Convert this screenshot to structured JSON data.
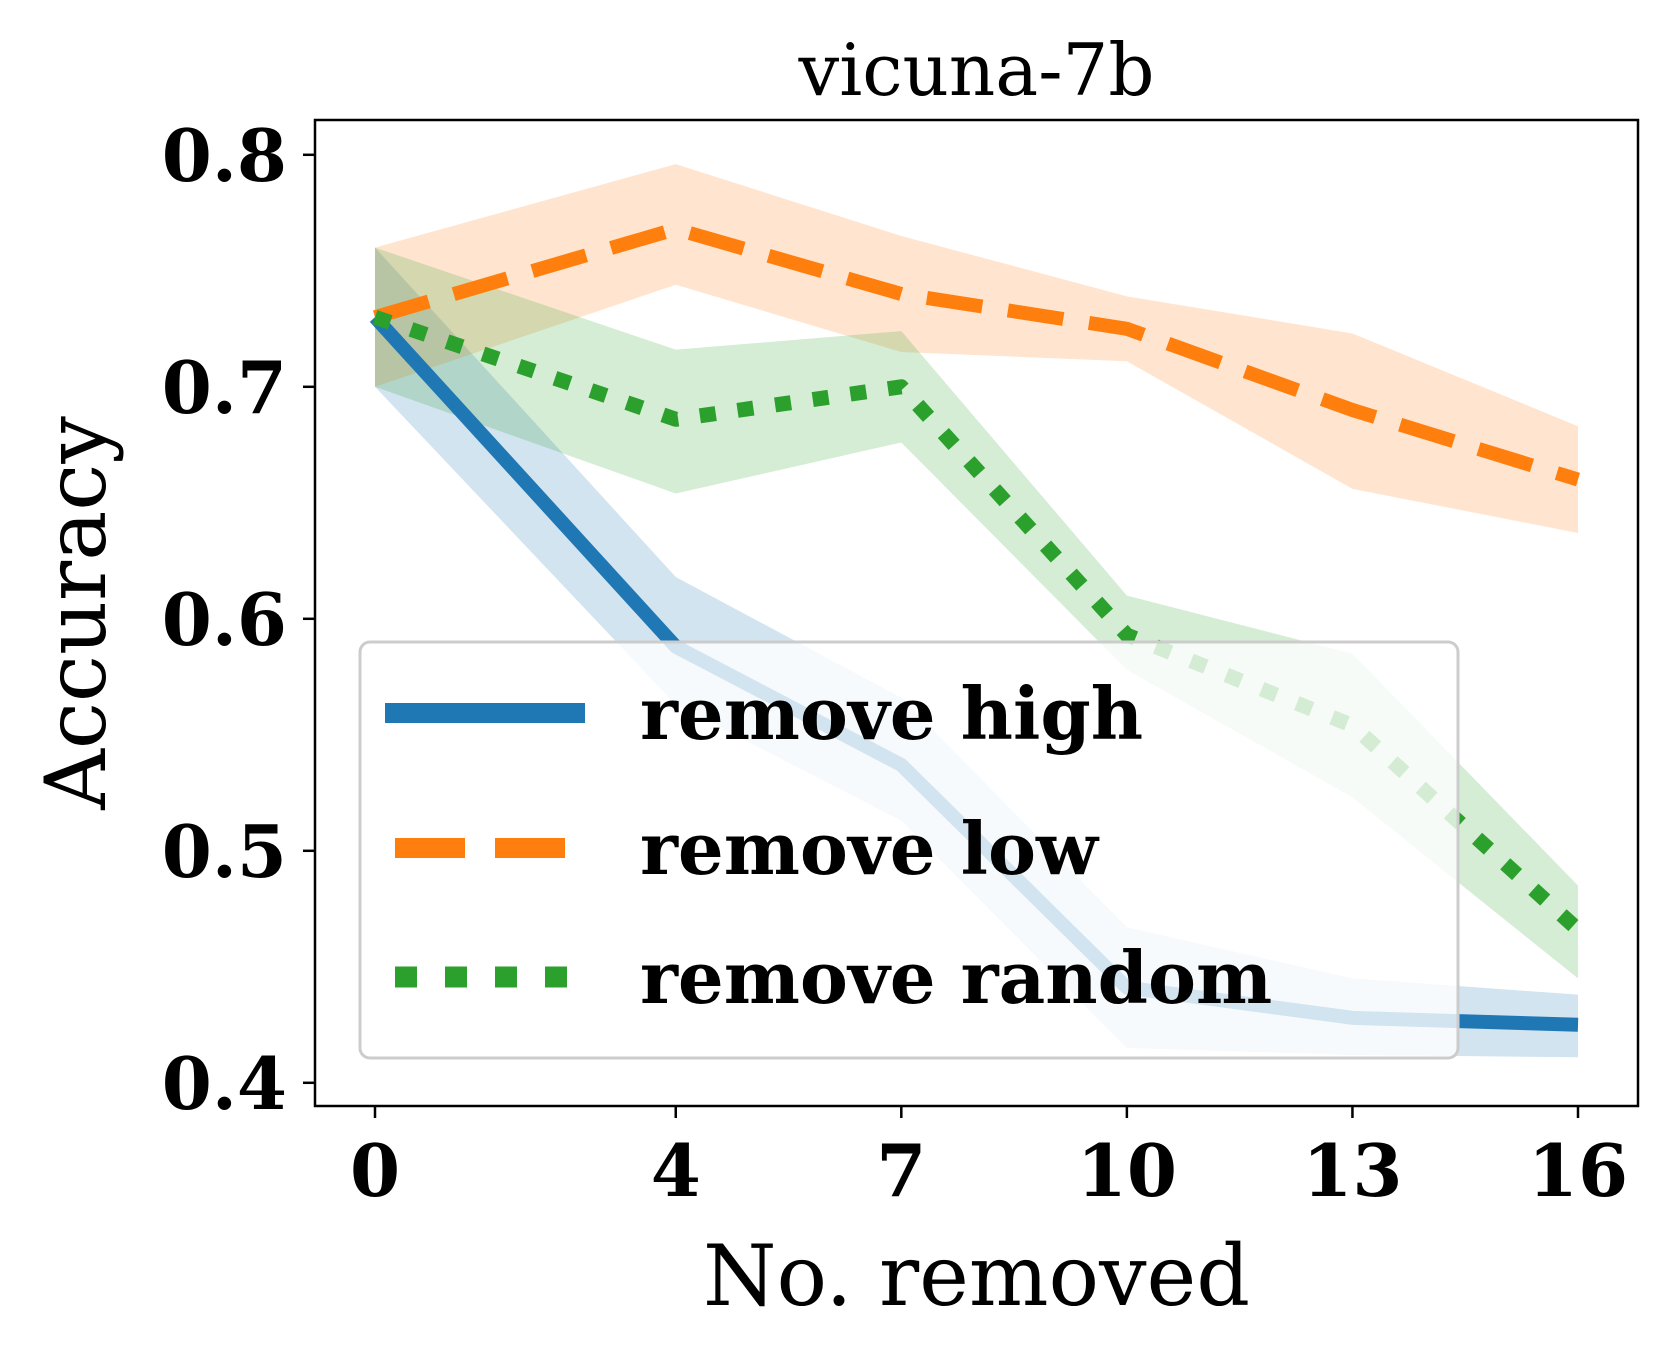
{
  "chart_data": {
    "type": "line",
    "title": "vicuna-7b",
    "xlabel": "No. removed",
    "ylabel": "Accuracy",
    "x": [
      0,
      4,
      7,
      10,
      13,
      16
    ],
    "x_ticks": [
      0,
      4,
      7,
      10,
      13,
      16
    ],
    "x_tick_labels": [
      "0",
      "4",
      "7",
      "10",
      "13",
      "16"
    ],
    "y_ticks": [
      0.4,
      0.5,
      0.6,
      0.7,
      0.8
    ],
    "y_tick_labels": [
      "0.4",
      "0.5",
      "0.6",
      "0.7",
      "0.8"
    ],
    "ylim": [
      0.39,
      0.815
    ],
    "grid": false,
    "legend_position": "lower-left",
    "series": [
      {
        "name": "remove high",
        "color": "#1f77b4",
        "style": "solid",
        "values": [
          0.73,
          0.588,
          0.537,
          0.441,
          0.428,
          0.425
        ],
        "lower": [
          0.7,
          0.563,
          0.513,
          0.415,
          0.412,
          0.411
        ],
        "upper": [
          0.76,
          0.618,
          0.566,
          0.467,
          0.445,
          0.438
        ]
      },
      {
        "name": "remove low",
        "color": "#ff7f0e",
        "style": "dashed",
        "values": [
          0.73,
          0.768,
          0.74,
          0.725,
          0.69,
          0.66
        ],
        "lower": [
          0.7,
          0.744,
          0.715,
          0.711,
          0.656,
          0.637
        ],
        "upper": [
          0.76,
          0.796,
          0.765,
          0.739,
          0.723,
          0.683
        ]
      },
      {
        "name": "remove random",
        "color": "#2ca02c",
        "style": "dotted",
        "values": [
          0.73,
          0.686,
          0.7,
          0.593,
          0.554,
          0.466
        ],
        "lower": [
          0.7,
          0.654,
          0.676,
          0.578,
          0.523,
          0.445
        ],
        "upper": [
          0.76,
          0.716,
          0.724,
          0.61,
          0.585,
          0.485
        ]
      }
    ]
  }
}
